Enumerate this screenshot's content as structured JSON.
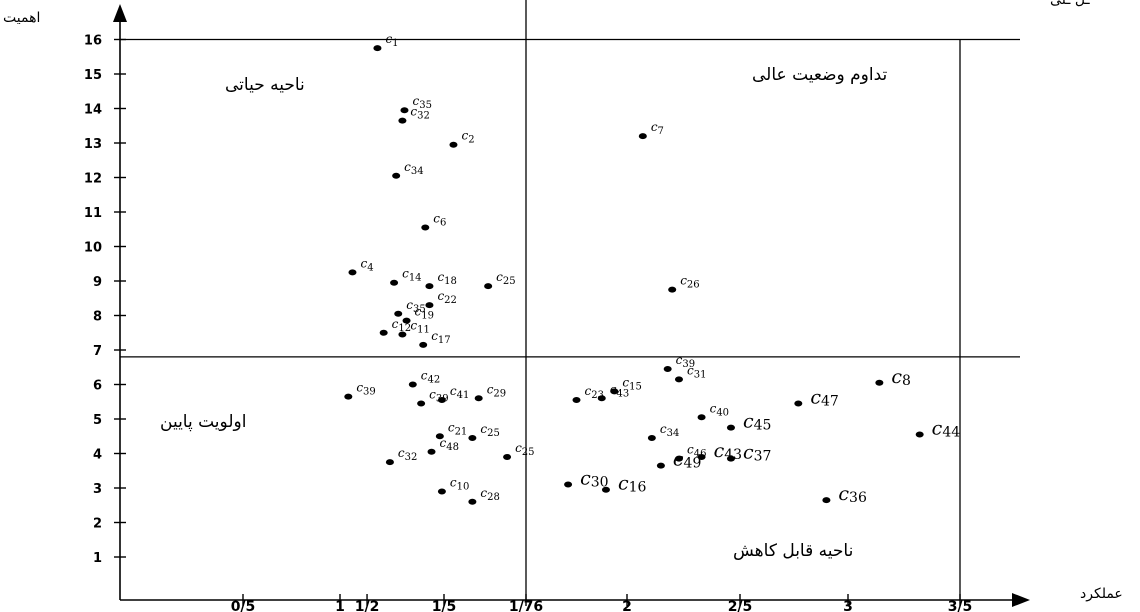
{
  "chart_data": {
    "type": "scatter",
    "xlabel": "عملکرد",
    "ylabel": "اهمیت",
    "top_partial_text": "ـل ـلی",
    "ylim": [
      0,
      16.8
    ],
    "y_ticks": [
      "1",
      "2",
      "3",
      "4",
      "5",
      "6",
      "7",
      "8",
      "9",
      "10",
      "11",
      "12",
      "13",
      "14",
      "15",
      "16"
    ],
    "x_ticks": [
      {
        "label": "0/5",
        "value": 0.5
      },
      {
        "label": "1",
        "value": 1.0
      },
      {
        "label": "1/2",
        "value": 1.13
      },
      {
        "label": "1/5",
        "value": 1.5
      },
      {
        "label": "1/76",
        "value": 1.76
      },
      {
        "label": "2",
        "value": 2.0
      },
      {
        "label": "2/5",
        "value": 2.5
      },
      {
        "label": "3",
        "value": 3.0
      },
      {
        "label": "3/5",
        "value": 3.5
      }
    ],
    "threshold_x": 1.76,
    "threshold_y": 6.8,
    "boundary_x": 3.5,
    "boundary_y": 16,
    "regions": {
      "top_left": "ناحیه حیاتی",
      "top_right": "تداوم وضعیت عالی",
      "bottom_left": "اولویت پایین",
      "bottom_right": "ناحیه قابل کاهش"
    },
    "points": [
      {
        "id": "c",
        "sub": "1",
        "x": 1.18,
        "y": 15.75,
        "size": "small"
      },
      {
        "id": "c",
        "sub": "35",
        "x": 1.31,
        "y": 13.95,
        "size": "small"
      },
      {
        "id": "c",
        "sub": "32",
        "x": 1.3,
        "y": 13.65,
        "size": "small"
      },
      {
        "id": "c",
        "sub": "2",
        "x": 1.53,
        "y": 12.95,
        "size": "small"
      },
      {
        "id": "c",
        "sub": "7",
        "x": 2.07,
        "y": 13.2,
        "size": "small"
      },
      {
        "id": "c",
        "sub": "34",
        "x": 1.27,
        "y": 12.05,
        "size": "small"
      },
      {
        "id": "c",
        "sub": "6",
        "x": 1.41,
        "y": 10.55,
        "size": "small"
      },
      {
        "id": "c",
        "sub": "4",
        "x": 1.06,
        "y": 9.25,
        "size": "small"
      },
      {
        "id": "c",
        "sub": "14",
        "x": 1.26,
        "y": 8.95,
        "size": "small"
      },
      {
        "id": "c",
        "sub": "18",
        "x": 1.43,
        "y": 8.85,
        "size": "small"
      },
      {
        "id": "c",
        "sub": "25",
        "x": 1.64,
        "y": 8.85,
        "size": "small"
      },
      {
        "id": "c",
        "sub": "26",
        "x": 2.2,
        "y": 8.75,
        "size": "small"
      },
      {
        "id": "c",
        "sub": "35",
        "x": 1.28,
        "y": 8.05,
        "size": "small"
      },
      {
        "id": "c",
        "sub": "22",
        "x": 1.43,
        "y": 8.3,
        "size": "small"
      },
      {
        "id": "c",
        "sub": "19",
        "x": 1.32,
        "y": 7.85,
        "size": "small"
      },
      {
        "id": "c",
        "sub": "12",
        "x": 1.21,
        "y": 7.5,
        "size": "small"
      },
      {
        "id": "c",
        "sub": "11",
        "x": 1.3,
        "y": 7.45,
        "size": "small"
      },
      {
        "id": "c",
        "sub": "17",
        "x": 1.4,
        "y": 7.15,
        "size": "small"
      },
      {
        "id": "c",
        "sub": "39",
        "x": 2.18,
        "y": 6.45,
        "size": "small"
      },
      {
        "id": "c",
        "sub": "42",
        "x": 1.35,
        "y": 6.0,
        "size": "small"
      },
      {
        "id": "c",
        "sub": "39",
        "x": 1.04,
        "y": 5.65,
        "size": "small"
      },
      {
        "id": "c",
        "sub": "39",
        "x": 1.39,
        "y": 5.45,
        "size": "small"
      },
      {
        "id": "c",
        "sub": "41",
        "x": 1.49,
        "y": 5.55,
        "size": "small"
      },
      {
        "id": "c",
        "sub": "29",
        "x": 1.61,
        "y": 5.6,
        "size": "small"
      },
      {
        "id": "c",
        "sub": "15",
        "x": 1.97,
        "y": 5.8,
        "size": "small"
      },
      {
        "id": "c",
        "sub": "31",
        "x": 2.23,
        "y": 6.15,
        "size": "small"
      },
      {
        "id": "c",
        "sub": "23",
        "x": 1.88,
        "y": 5.55,
        "size": "small"
      },
      {
        "id": "c",
        "sub": "43",
        "x": 1.94,
        "y": 5.6,
        "size": "small"
      },
      {
        "id": "c",
        "sub": "8",
        "x": 3.14,
        "y": 6.05,
        "size": "large"
      },
      {
        "id": "c",
        "sub": "47",
        "x": 2.77,
        "y": 5.45,
        "size": "large"
      },
      {
        "id": "c",
        "sub": "40",
        "x": 2.33,
        "y": 5.05,
        "size": "small"
      },
      {
        "id": "c",
        "sub": "45",
        "x": 2.46,
        "y": 4.75,
        "size": "large"
      },
      {
        "id": "c",
        "sub": "44",
        "x": 3.32,
        "y": 4.55,
        "size": "large"
      },
      {
        "id": "c",
        "sub": "21",
        "x": 1.48,
        "y": 4.5,
        "size": "small"
      },
      {
        "id": "c",
        "sub": "25",
        "x": 1.59,
        "y": 4.45,
        "size": "small"
      },
      {
        "id": "c",
        "sub": "34",
        "x": 2.11,
        "y": 4.45,
        "size": "small"
      },
      {
        "id": "c",
        "sub": "48",
        "x": 1.44,
        "y": 4.05,
        "size": "small"
      },
      {
        "id": "c",
        "sub": "32",
        "x": 1.24,
        "y": 3.75,
        "size": "small"
      },
      {
        "id": "c",
        "sub": "25",
        "x": 1.7,
        "y": 3.9,
        "size": "small"
      },
      {
        "id": "c",
        "sub": "46",
        "x": 2.23,
        "y": 3.85,
        "size": "small"
      },
      {
        "id": "c",
        "sub": "43",
        "x": 2.33,
        "y": 3.9,
        "size": "large"
      },
      {
        "id": "c",
        "sub": "37",
        "x": 2.46,
        "y": 3.85,
        "size": "large"
      },
      {
        "id": "c",
        "sub": "49",
        "x": 2.15,
        "y": 3.65,
        "size": "large"
      },
      {
        "id": "c",
        "sub": "30",
        "x": 1.86,
        "y": 3.1,
        "size": "large"
      },
      {
        "id": "c",
        "sub": "16",
        "x": 1.95,
        "y": 2.95,
        "size": "large"
      },
      {
        "id": "c",
        "sub": "10",
        "x": 1.49,
        "y": 2.9,
        "size": "small"
      },
      {
        "id": "c",
        "sub": "28",
        "x": 1.59,
        "y": 2.6,
        "size": "small"
      },
      {
        "id": "c",
        "sub": "36",
        "x": 2.9,
        "y": 2.65,
        "size": "large"
      }
    ]
  }
}
